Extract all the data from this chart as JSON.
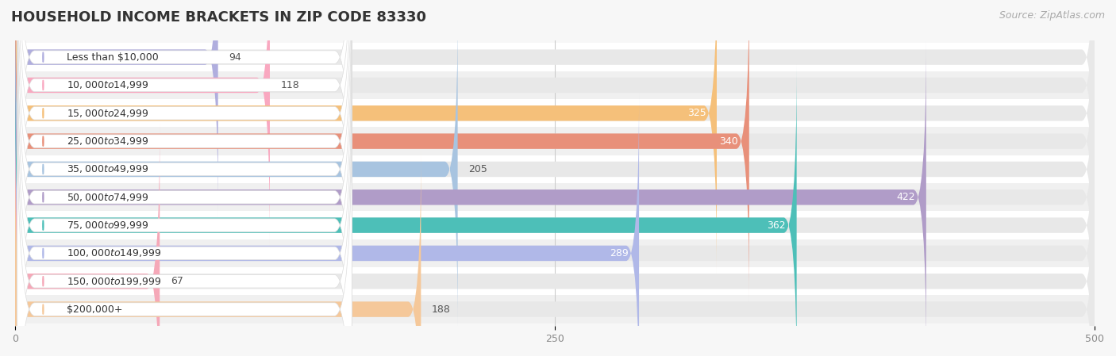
{
  "title": "HOUSEHOLD INCOME BRACKETS IN ZIP CODE 83330",
  "source": "Source: ZipAtlas.com",
  "categories": [
    "Less than $10,000",
    "$10,000 to $14,999",
    "$15,000 to $24,999",
    "$25,000 to $34,999",
    "$35,000 to $49,999",
    "$50,000 to $74,999",
    "$75,000 to $99,999",
    "$100,000 to $149,999",
    "$150,000 to $199,999",
    "$200,000+"
  ],
  "values": [
    94,
    118,
    325,
    340,
    205,
    422,
    362,
    289,
    67,
    188
  ],
  "bar_colors": [
    "#b0aede",
    "#f9a8c0",
    "#f5c07a",
    "#e8907a",
    "#a8c4e0",
    "#b09cc8",
    "#4dbfb8",
    "#b0b8e8",
    "#f5a8b8",
    "#f5c89a"
  ],
  "label_inside_threshold": 220,
  "xlim": [
    0,
    500
  ],
  "xticks": [
    0,
    250,
    500
  ],
  "background_color": "#f7f7f7",
  "bar_background_color": "#e8e8e8",
  "row_background_color": "#f0f0f0",
  "title_fontsize": 13,
  "source_fontsize": 9,
  "value_fontsize": 9,
  "label_fontsize": 9,
  "tick_fontsize": 9,
  "bar_height": 0.55,
  "figure_width": 14.06,
  "figure_height": 4.49
}
